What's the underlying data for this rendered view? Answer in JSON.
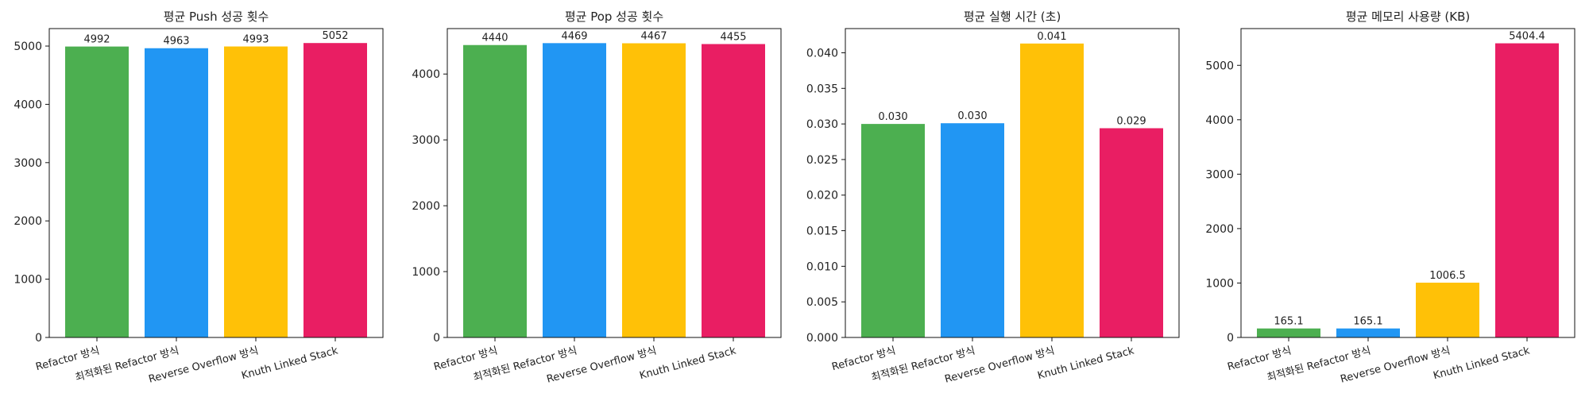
{
  "chart_data": [
    {
      "type": "bar",
      "title": "평균 Push 성공 횟수",
      "xlabel": "",
      "ylabel": "",
      "categories": [
        "Refactor 방식",
        "최적화된 Refactor 방식",
        "Reverse Overflow 방식",
        "Knuth Linked Stack"
      ],
      "values": [
        4992,
        4963,
        4993,
        5052
      ],
      "value_labels": [
        "4992",
        "4963",
        "4993",
        "5052"
      ],
      "colors": [
        "#4CAF50",
        "#2196F3",
        "#FFC107",
        "#E91E63"
      ],
      "ylim": [
        0,
        5300
      ],
      "yticks": [
        0,
        1000,
        2000,
        3000,
        4000,
        5000
      ],
      "ytick_labels": [
        "0",
        "1000",
        "2000",
        "3000",
        "4000",
        "5000"
      ],
      "grid": false,
      "legend": "none"
    },
    {
      "type": "bar",
      "title": "평균 Pop 성공 횟수",
      "xlabel": "",
      "ylabel": "",
      "categories": [
        "Refactor 방식",
        "최적화된 Refactor 방식",
        "Reverse Overflow 방식",
        "Knuth Linked Stack"
      ],
      "values": [
        4440,
        4469,
        4467,
        4455
      ],
      "value_labels": [
        "4440",
        "4469",
        "4467",
        "4455"
      ],
      "colors": [
        "#4CAF50",
        "#2196F3",
        "#FFC107",
        "#E91E63"
      ],
      "ylim": [
        0,
        4690
      ],
      "yticks": [
        0,
        1000,
        2000,
        3000,
        4000
      ],
      "ytick_labels": [
        "0",
        "1000",
        "2000",
        "3000",
        "4000"
      ],
      "grid": false,
      "legend": "none"
    },
    {
      "type": "bar",
      "title": "평균 실행 시간 (초)",
      "xlabel": "",
      "ylabel": "",
      "categories": [
        "Refactor 방식",
        "최적화된 Refactor 방식",
        "Reverse Overflow 방식",
        "Knuth Linked Stack"
      ],
      "values": [
        0.03,
        0.0301,
        0.0413,
        0.0294
      ],
      "value_labels": [
        "0.030",
        "0.030",
        "0.041",
        "0.029"
      ],
      "colors": [
        "#4CAF50",
        "#2196F3",
        "#FFC107",
        "#E91E63"
      ],
      "ylim": [
        0,
        0.0434
      ],
      "yticks": [
        0,
        0.005,
        0.01,
        0.015,
        0.02,
        0.025,
        0.03,
        0.035,
        0.04
      ],
      "ytick_labels": [
        "0.000",
        "0.005",
        "0.010",
        "0.015",
        "0.020",
        "0.025",
        "0.030",
        "0.035",
        "0.040"
      ],
      "grid": false,
      "legend": "none"
    },
    {
      "type": "bar",
      "title": "평균 메모리 사용량 (KB)",
      "xlabel": "",
      "ylabel": "",
      "categories": [
        "Refactor 방식",
        "최적화된 Refactor 방식",
        "Reverse Overflow 방식",
        "Knuth Linked Stack"
      ],
      "values": [
        165.1,
        165.1,
        1006.5,
        5404.4
      ],
      "value_labels": [
        "165.1",
        "165.1",
        "1006.5",
        "5404.4"
      ],
      "colors": [
        "#4CAF50",
        "#2196F3",
        "#FFC107",
        "#E91E63"
      ],
      "ylim": [
        0,
        5675
      ],
      "yticks": [
        0,
        1000,
        2000,
        3000,
        4000,
        5000
      ],
      "ytick_labels": [
        "0",
        "1000",
        "2000",
        "3000",
        "4000",
        "5000"
      ],
      "grid": false,
      "legend": "none"
    }
  ]
}
